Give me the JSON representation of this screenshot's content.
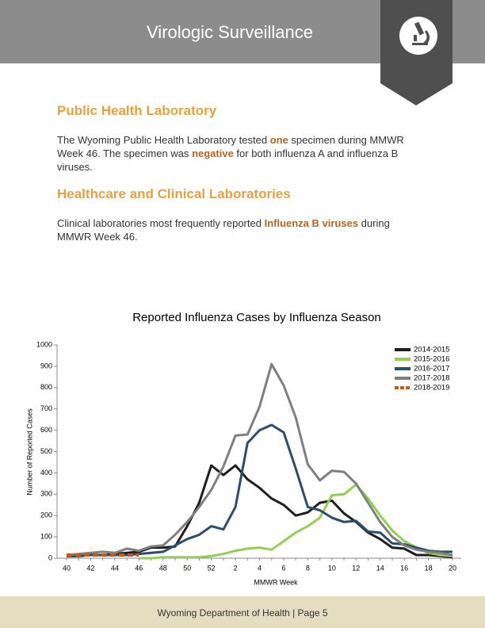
{
  "header": {
    "title": "Virologic Surveillance"
  },
  "sections": [
    {
      "heading": "Public Health Laboratory",
      "runs": [
        "The Wyoming Public Health Laboratory tested ",
        "one",
        " specimen during MMWR Week 46. The specimen was ",
        "negative",
        " for both influenza A and influenza B viruses."
      ]
    },
    {
      "heading": "Healthcare and Clinical Laboratories",
      "runs": [
        "Clinical laboratories most frequently reported ",
        "Influenza B viruses",
        " during MMWR Week 46."
      ]
    }
  ],
  "chart_data": {
    "type": "line",
    "title": "Reported Influenza Cases by Influenza Season",
    "x_label": "MMWR Week",
    "y_label": "Number of Reported Cases",
    "categories": [
      "40",
      null,
      "42",
      null,
      "44",
      null,
      "46",
      null,
      "48",
      null,
      "50",
      null,
      "52",
      null,
      "2",
      null,
      "4",
      null,
      "6",
      null,
      "8",
      null,
      "10",
      null,
      "12",
      null,
      "14",
      null,
      "16",
      null,
      "18",
      null,
      "20"
    ],
    "ylim": [
      0,
      1000
    ],
    "yticks": [
      0,
      100,
      200,
      300,
      400,
      500,
      600,
      700,
      800,
      900,
      1000
    ],
    "grid": false,
    "legend": "upper right",
    "series": [
      {
        "name": "2014-2015",
        "color": "#1e1e1e",
        "values": [
          10,
          10,
          15,
          15,
          20,
          25,
          30,
          50,
          50,
          55,
          150,
          260,
          435,
          390,
          435,
          370,
          330,
          280,
          250,
          200,
          215,
          260,
          270,
          210,
          170,
          120,
          90,
          50,
          45,
          15,
          15,
          10,
          5
        ]
      },
      {
        "name": "2015-2016",
        "color": "#92d050",
        "values": [
          null,
          null,
          null,
          null,
          null,
          null,
          0,
          0,
          5,
          5,
          5,
          5,
          10,
          20,
          35,
          45,
          50,
          40,
          80,
          120,
          150,
          190,
          295,
          300,
          345,
          280,
          200,
          130,
          80,
          50,
          25,
          15,
          10
        ]
      },
      {
        "name": "2016-2017",
        "color": "#2a4f6e",
        "values": [
          15,
          15,
          15,
          15,
          15,
          15,
          20,
          25,
          30,
          60,
          90,
          110,
          150,
          135,
          240,
          540,
          600,
          625,
          590,
          420,
          240,
          225,
          190,
          170,
          175,
          125,
          120,
          70,
          65,
          50,
          35,
          30,
          30
        ]
      },
      {
        "name": "2017-2018",
        "color": "#7f7f7f",
        "values": [
          15,
          20,
          25,
          30,
          25,
          45,
          35,
          55,
          60,
          110,
          170,
          240,
          320,
          430,
          575,
          580,
          710,
          910,
          810,
          660,
          440,
          365,
          410,
          405,
          350,
          260,
          170,
          100,
          60,
          40,
          30,
          25,
          15
        ]
      },
      {
        "name": "2018-2019",
        "color": "#c55a11",
        "dashed": true,
        "values": [
          15,
          15,
          15,
          15,
          15,
          15,
          15,
          null,
          null,
          null,
          null,
          null,
          null,
          null,
          null,
          null,
          null,
          null,
          null,
          null,
          null,
          null,
          null,
          null,
          null,
          null,
          null,
          null,
          null,
          null,
          null,
          null,
          null
        ]
      }
    ]
  },
  "footer": {
    "text": "Wyoming Department of Health | Page 5"
  }
}
